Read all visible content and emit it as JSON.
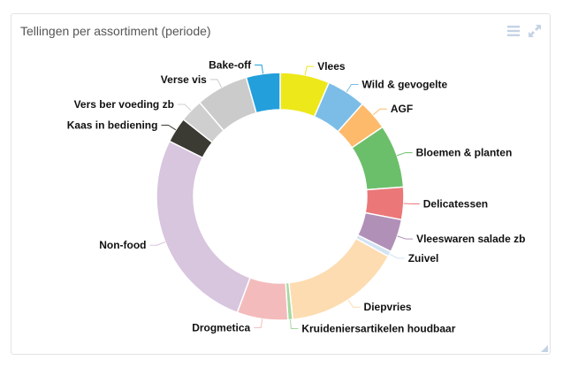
{
  "panel": {
    "title": "Tellingen per assortiment (periode)"
  },
  "toolbar": {
    "menu_icon": "hamburger-menu-icon",
    "expand_icon": "expand-icon",
    "icon_color": "#c5d3e6"
  },
  "chart_data": {
    "type": "pie",
    "title": "Tellingen per assortiment (periode)",
    "donut": true,
    "legend": "none",
    "slices": [
      {
        "label": "Vlees",
        "value": 6.4,
        "color": "#ece81a"
      },
      {
        "label": "Wild & gevogelte",
        "value": 5.1,
        "color": "#7cbde8"
      },
      {
        "label": "AGF",
        "value": 3.9,
        "color": "#fdba6b"
      },
      {
        "label": "Bloemen & planten",
        "value": 8.2,
        "color": "#6cbf6a"
      },
      {
        "label": "Delicatessen",
        "value": 4.2,
        "color": "#eb7778"
      },
      {
        "label": "Vleeswaren salade zb",
        "value": 4.3,
        "color": "#b190b8"
      },
      {
        "label": "Zuivel",
        "value": 0.7,
        "color": "#d3e3f3"
      },
      {
        "label": "Diepvries",
        "value": 15.2,
        "color": "#fddcb1"
      },
      {
        "label": "Kruideniersartikelen houdbaar",
        "value": 0.6,
        "color": "#a6d8a1"
      },
      {
        "label": "Drogmetica",
        "value": 6.6,
        "color": "#f4bbbc"
      },
      {
        "label": "Non-food",
        "value": 26.5,
        "color": "#d8c5de"
      },
      {
        "label": "Kaas in bediening",
        "value": 3.3,
        "color": "#3b3a33"
      },
      {
        "label": "Vers ber voeding zb",
        "value": 3.0,
        "color": "#cfcfcf"
      },
      {
        "label": "Verse vis",
        "value": 6.8,
        "color": "#cbcbcb"
      },
      {
        "label": "Bake-off",
        "value": 4.4,
        "color": "#239fdb"
      }
    ]
  }
}
